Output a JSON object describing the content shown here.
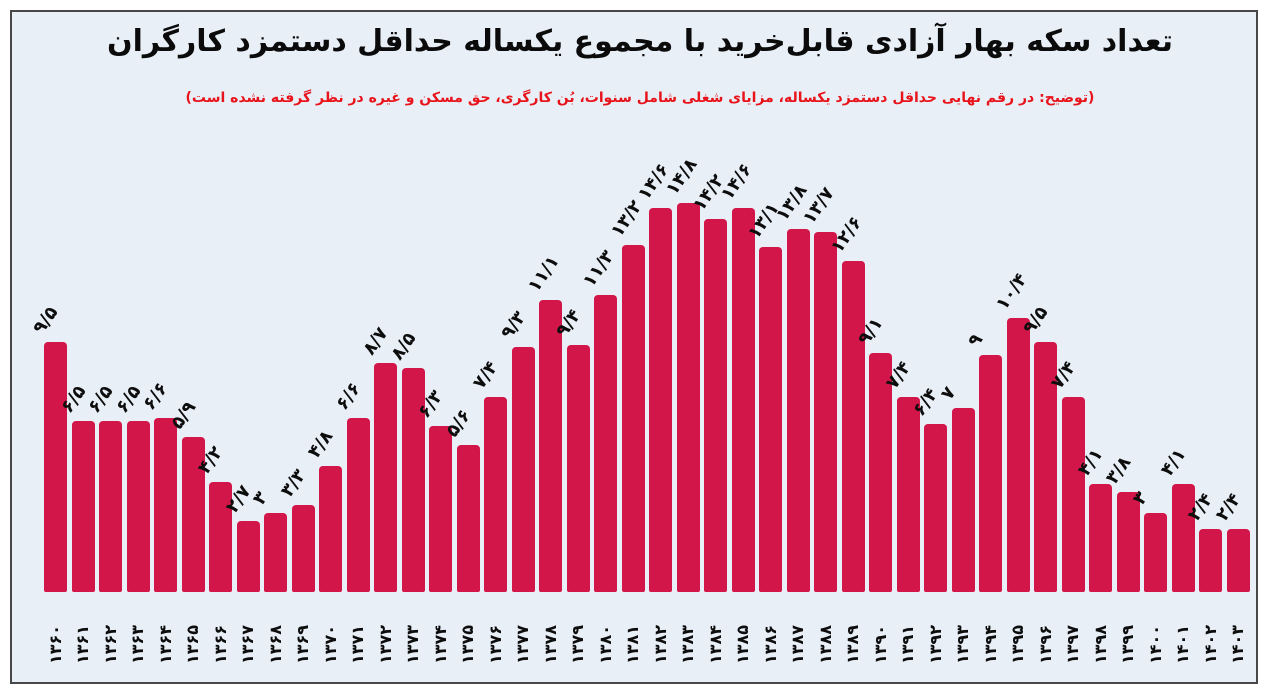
{
  "chart_data": {
    "type": "bar",
    "title": "تعداد سکه بهار آزادی قابل‌خرید با مجموع یکساله حداقل دستمزد کارگران",
    "subtitle": "(توضیح: در رقم نهایی حداقل دستمزد یکساله، مزایای شغلی شامل سنوات، بُن کارگری، حق مسکن و غیره در نظر گرفته نشده است)",
    "xlabel": "",
    "ylabel": "",
    "ylim": [
      0,
      15
    ],
    "grid": false,
    "legend": "none",
    "x_tick_rotation": 90,
    "value_label_rotation": 55,
    "categories": [
      "۱۳۶۰",
      "۱۳۶۱",
      "۱۳۶۲",
      "۱۳۶۳",
      "۱۳۶۴",
      "۱۳۶۵",
      "۱۳۶۶",
      "۱۳۶۷",
      "۱۳۶۸",
      "۱۳۶۹",
      "۱۳۷۰",
      "۱۳۷۱",
      "۱۳۷۲",
      "۱۳۷۳",
      "۱۳۷۴",
      "۱۳۷۵",
      "۱۳۷۶",
      "۱۳۷۷",
      "۱۳۷۸",
      "۱۳۷۹",
      "۱۳۸۰",
      "۱۳۸۱",
      "۱۳۸۲",
      "۱۳۸۳",
      "۱۳۸۴",
      "۱۳۸۵",
      "۱۳۸۶",
      "۱۳۸۷",
      "۱۳۸۸",
      "۱۳۸۹",
      "۱۳۹۰",
      "۱۳۹۱",
      "۱۳۹۲",
      "۱۳۹۳",
      "۱۳۹۴",
      "۱۳۹۵",
      "۱۳۹۶",
      "۱۳۹۷",
      "۱۳۹۸",
      "۱۳۹۹",
      "۱۴۰۰",
      "۱۴۰۱",
      "۱۴۰۲",
      "۱۴۰۳"
    ],
    "values": [
      9.5,
      6.5,
      6.5,
      6.5,
      6.6,
      5.9,
      4.2,
      2.7,
      3,
      3.3,
      4.8,
      6.6,
      8.7,
      8.5,
      6.3,
      5.6,
      7.4,
      9.3,
      11.1,
      9.4,
      11.3,
      13.2,
      14.6,
      14.8,
      14.2,
      14.6,
      13.1,
      13.8,
      13.7,
      12.6,
      9.1,
      7.4,
      6.4,
      7,
      9,
      10.4,
      9.5,
      7.4,
      4.1,
      3.8,
      3,
      4.1,
      2.4,
      2.4
    ],
    "value_labels": [
      "۹/۵",
      "۶/۵",
      "۶/۵",
      "۶/۵",
      "۶/۶",
      "۵/۹",
      "۴/۲",
      "۲/۷",
      "۳",
      "۳/۳",
      "۴/۸",
      "۶/۶",
      "۸/۷",
      "۸/۵",
      "۶/۳",
      "۵/۶",
      "۷/۴",
      "۹/۳",
      "۱۱/۱",
      "۹/۴",
      "۱۱/۳",
      "۱۳/۲",
      "۱۴/۶",
      "۱۴/۸",
      "۱۴/۲",
      "۱۴/۶",
      "۱۳/۱",
      "۱۳/۸",
      "۱۳/۷",
      "۱۲/۶",
      "۹/۱",
      "۷/۴",
      "۶/۴",
      "۷",
      "۹",
      "۱۰/۴",
      "۹/۵",
      "۷/۴",
      "۴/۱",
      "۳/۸",
      "۳",
      "۴/۱",
      "۲/۴",
      "۲/۴"
    ],
    "colors": {
      "bar": "#d2164a",
      "plot_background": "#e8eff7",
      "frame_border": "#474747",
      "title_text": "#0b0b0b",
      "subtitle_text": "#e8131b",
      "label_text": "#0d0d0d"
    }
  }
}
